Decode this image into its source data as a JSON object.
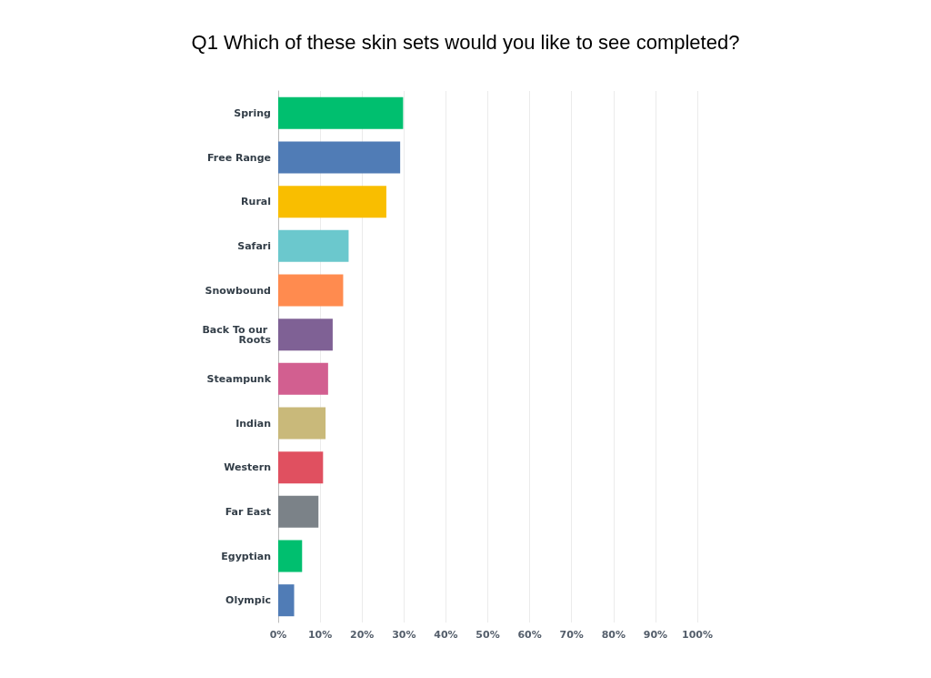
{
  "chart_data": {
    "type": "bar",
    "orientation": "horizontal",
    "title": "Q1 Which of these skin sets would you like to see completed?",
    "categories": [
      "Spring",
      "Free Range",
      "Rural",
      "Safari",
      "Snowbound",
      "Back To our Roots",
      "Steampunk",
      "Indian",
      "Western",
      "Far East",
      "Egyptian",
      "Olympic"
    ],
    "values": [
      29.8,
      29.1,
      25.8,
      16.8,
      15.5,
      13.0,
      11.9,
      11.3,
      10.7,
      9.6,
      5.7,
      3.8
    ],
    "colors": [
      "#00bf6f",
      "#507cb6",
      "#f9be00",
      "#6bc8cd",
      "#ff8b4f",
      "#7f6195",
      "#d25f90",
      "#c9b97a",
      "#e05060",
      "#7b8288",
      "#00bf6f",
      "#507cb6"
    ],
    "xlim": [
      0,
      100
    ],
    "xticks": [
      {
        "value": 0,
        "label": "0%"
      },
      {
        "value": 10,
        "label": "10%"
      },
      {
        "value": 20,
        "label": "20%"
      },
      {
        "value": 30,
        "label": "30%"
      },
      {
        "value": 40,
        "label": "40%"
      },
      {
        "value": 50,
        "label": "50%"
      },
      {
        "value": 60,
        "label": "60%"
      },
      {
        "value": 70,
        "label": "70%"
      },
      {
        "value": 80,
        "label": "80%"
      },
      {
        "value": 90,
        "label": "90%"
      },
      {
        "value": 100,
        "label": "100%"
      }
    ],
    "grid": "x"
  }
}
